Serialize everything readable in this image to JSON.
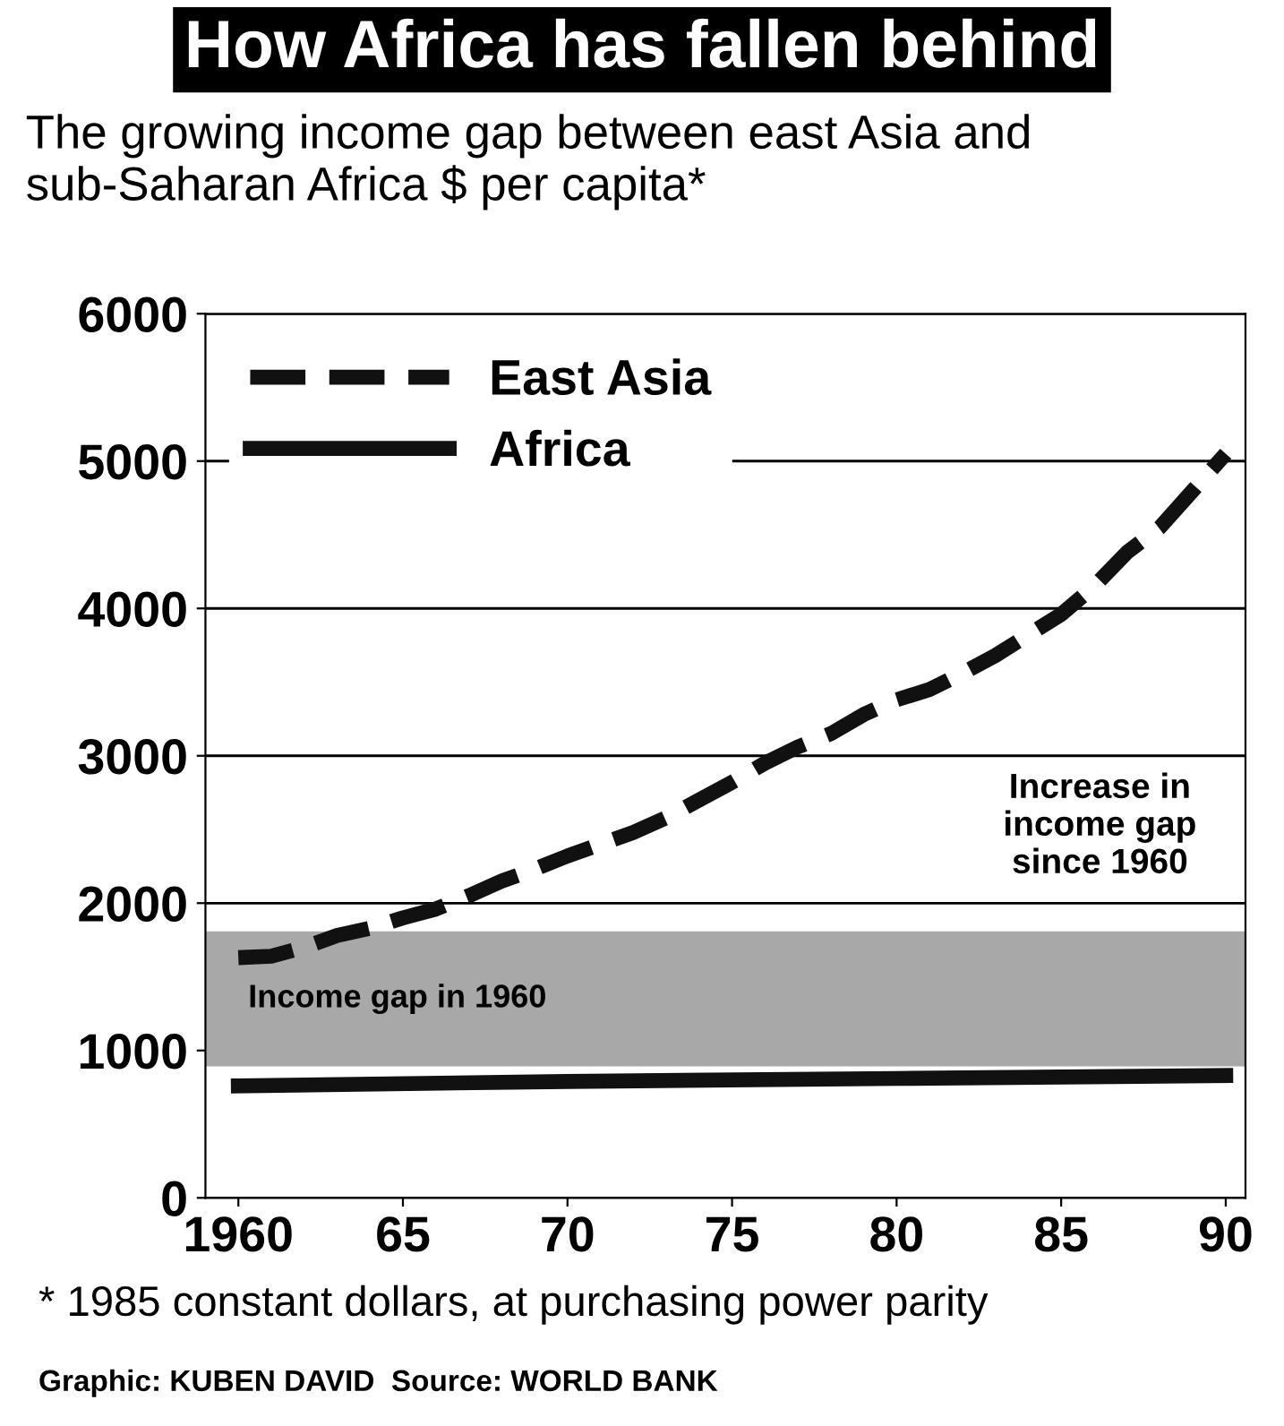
{
  "chart_data": {
    "type": "line",
    "title": "How Africa has fallen behind",
    "subtitle": "The growing income gap between east Asia and sub-Saharan Africa $ per capita*",
    "series": [
      {
        "name": "East Asia",
        "color": "#111111",
        "line_style": "dashed",
        "x": [
          1960,
          1961,
          1962,
          1963,
          1964,
          1965,
          1966,
          1967,
          1968,
          1969,
          1970,
          1971,
          1972,
          1973,
          1974,
          1975,
          1976,
          1977,
          1978,
          1979,
          1980,
          1981,
          1982,
          1983,
          1984,
          1985,
          1986,
          1987,
          1988,
          1989,
          1990
        ],
        "values": [
          1630,
          1640,
          1700,
          1780,
          1830,
          1900,
          1960,
          2050,
          2150,
          2230,
          2320,
          2400,
          2480,
          2580,
          2700,
          2820,
          2950,
          3060,
          3150,
          3280,
          3380,
          3450,
          3560,
          3680,
          3820,
          3960,
          4150,
          4380,
          4550,
          4800,
          5050
        ]
      },
      {
        "name": "Africa",
        "color": "#111111",
        "line_style": "solid",
        "x": [
          1960,
          1970,
          1980,
          1990
        ],
        "values": [
          760,
          790,
          810,
          830
        ]
      }
    ],
    "xlim": [
      1959,
      1990.6
    ],
    "xticks": [
      1960,
      {
        "value": 1965,
        "label": "65"
      },
      {
        "value": 1970,
        "label": "70"
      },
      {
        "value": 1975,
        "label": "75"
      },
      {
        "value": 1980,
        "label": "80"
      },
      {
        "value": 1985,
        "label": "85"
      },
      {
        "value": 1990,
        "label": "90"
      }
    ],
    "ylim": [
      0,
      6000
    ],
    "yticks": [
      0,
      1000,
      2000,
      3000,
      4000,
      5000,
      6000
    ],
    "grid": "y",
    "legend": "top left",
    "marker": "none",
    "bands": [
      {
        "axis": "y",
        "from": 900,
        "to": 1800,
        "label": "Income gap in 1960",
        "color": "#a8a8a8"
      }
    ],
    "annotations": [
      "Increase in\nincome gap\nsince 1960",
      "* 1985 constant dollars, at purchasing power parity",
      "Graphic: KUBEN DAVID  Source: WORLD BANK"
    ]
  }
}
